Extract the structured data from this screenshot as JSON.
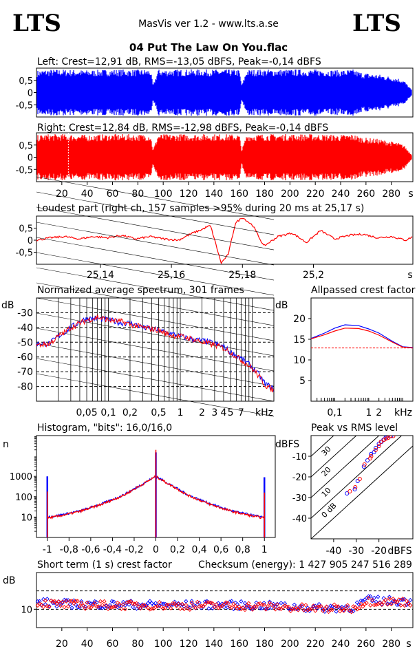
{
  "header": {
    "logo_left": "LTS",
    "logo_right": "LTS",
    "app_title": "MasVis ver 1.2 - www.lts.a.se",
    "file_title": "04 Put The Law On You.flac"
  },
  "colors": {
    "left_channel": "#0000ff",
    "right_channel": "#ff0000",
    "grid": "#000000",
    "reference": "#ff0000"
  },
  "chart_data": [
    {
      "id": "left_waveform",
      "type": "area",
      "title": "Left: Crest=12,91 dB, RMS=-13,05 dBFS, Peak=-0,14 dBFS",
      "yticks": [
        "0,5",
        "0",
        "-0,5"
      ],
      "ylim": [
        -1,
        1
      ],
      "xlim": [
        0,
        297
      ],
      "envelope": {
        "x": [
          0,
          8,
          20,
          40,
          60,
          80,
          90,
          92,
          96,
          100,
          120,
          140,
          160,
          162,
          166,
          168,
          180,
          200,
          220,
          240,
          250,
          255,
          260,
          270,
          280,
          285,
          290,
          293,
          297
        ],
        "y": [
          0.9,
          0.95,
          0.95,
          0.92,
          0.95,
          0.94,
          0.95,
          0.3,
          0.95,
          0.94,
          0.95,
          0.95,
          0.94,
          0.3,
          0.95,
          0.94,
          0.95,
          0.95,
          0.95,
          0.92,
          0.95,
          0.85,
          0.8,
          0.75,
          0.65,
          0.6,
          0.5,
          0.3,
          0.05
        ]
      }
    },
    {
      "id": "right_waveform",
      "type": "area",
      "title": "Right: Crest=12,84 dB, RMS=-12,98 dBFS, Peak=-0,14 dBFS",
      "yticks": [
        "0,5",
        "0",
        "-0,5"
      ],
      "ylim": [
        -1,
        1
      ],
      "xlim": [
        0,
        297
      ],
      "xticks": [
        "20",
        "40",
        "60",
        "80",
        "100",
        "120",
        "140",
        "160",
        "180",
        "200",
        "220",
        "240",
        "260",
        "280"
      ],
      "xunit": "s",
      "marker_x": 25.17,
      "envelope": {
        "x": [
          0,
          8,
          20,
          40,
          60,
          80,
          90,
          92,
          96,
          100,
          120,
          140,
          160,
          162,
          166,
          168,
          180,
          200,
          220,
          240,
          250,
          255,
          260,
          270,
          280,
          285,
          290,
          293,
          297
        ],
        "y": [
          0.9,
          0.95,
          0.95,
          0.92,
          0.95,
          0.94,
          0.95,
          0.3,
          0.95,
          0.94,
          0.95,
          0.95,
          0.94,
          0.3,
          0.95,
          0.94,
          0.95,
          0.95,
          0.95,
          0.92,
          0.95,
          0.85,
          0.8,
          0.75,
          0.65,
          0.6,
          0.5,
          0.3,
          0.05
        ]
      }
    },
    {
      "id": "loudest_part",
      "type": "line",
      "title": "Loudest part (right ch, 157 samples >95% during 20 ms at 25,17 s)",
      "yticks": [
        "0,5",
        "0",
        "-0,5"
      ],
      "ylim": [
        -1,
        1
      ],
      "xticks": [
        "25,14",
        "25,16",
        "25,18",
        "25,2"
      ],
      "xunit": "s",
      "xlim": [
        25.122,
        25.228
      ],
      "series": [
        {
          "color": "#ff0000",
          "x": [
            25.122,
            25.126,
            25.13,
            25.134,
            25.138,
            25.142,
            25.146,
            25.15,
            25.154,
            25.158,
            25.162,
            25.166,
            25.168,
            25.17,
            25.171,
            25.172,
            25.174,
            25.176,
            25.178,
            25.18,
            25.183,
            25.186,
            25.19,
            25.194,
            25.198,
            25.202,
            25.206,
            25.21,
            25.214,
            25.218,
            25.222,
            25.226,
            25.228
          ],
          "y": [
            0.0,
            0.1,
            0.15,
            0.05,
            0.15,
            0.1,
            0.2,
            0.05,
            0.15,
            0.05,
            0.0,
            0.3,
            0.4,
            0.55,
            0.6,
            0.1,
            -0.95,
            -0.6,
            0.7,
            0.95,
            0.6,
            -0.25,
            0.15,
            0.3,
            -0.1,
            0.4,
            0.05,
            0.2,
            0.25,
            0.1,
            0.15,
            0.0,
            0.15
          ]
        }
      ]
    },
    {
      "id": "average_spectrum",
      "type": "line",
      "title": "Normalized average spectrum, 301 frames",
      "ylabel": "dB",
      "yticks": [
        "-30",
        "-40",
        "-50",
        "-60",
        "-70",
        "-80"
      ],
      "ylim": [
        -90,
        -20
      ],
      "xticks": [
        "0,05",
        "0,1",
        "0,2",
        "0,5",
        "1",
        "2",
        "3",
        "4",
        "5",
        "7"
      ],
      "xunit": "kHz",
      "xlim": [
        0.01,
        20
      ],
      "xscale": "log",
      "series": [
        {
          "color": "#0000ff",
          "x": [
            0.01,
            0.015,
            0.02,
            0.03,
            0.04,
            0.05,
            0.07,
            0.1,
            0.15,
            0.2,
            0.3,
            0.5,
            0.7,
            1,
            1.5,
            2,
            3,
            4,
            5,
            7,
            10,
            15,
            20
          ],
          "y": [
            -51,
            -51,
            -46,
            -40,
            -36,
            -34,
            -34,
            -35,
            -37,
            -37,
            -40,
            -42,
            -44,
            -46,
            -48,
            -49,
            -51,
            -53,
            -57,
            -61,
            -67,
            -78,
            -82
          ]
        },
        {
          "color": "#ff0000",
          "x": [
            0.01,
            0.015,
            0.02,
            0.03,
            0.04,
            0.05,
            0.07,
            0.1,
            0.15,
            0.2,
            0.3,
            0.5,
            0.7,
            1,
            1.5,
            2,
            3,
            4,
            5,
            7,
            10,
            15,
            20
          ],
          "y": [
            -52,
            -51,
            -46,
            -40,
            -37,
            -35,
            -33,
            -35,
            -36,
            -38,
            -40,
            -42,
            -45,
            -46,
            -48,
            -50,
            -52,
            -54,
            -57,
            -62,
            -68,
            -79,
            -83
          ]
        }
      ]
    },
    {
      "id": "allpassed_crest",
      "type": "line",
      "title": "Allpassed crest factor",
      "ylabel": "dB",
      "yticks": [
        "20",
        "15",
        "10",
        "5"
      ],
      "ylim": [
        0,
        25
      ],
      "xticks": [
        "0,1",
        "1",
        "2"
      ],
      "xunit": "kHz",
      "xlim": [
        0.02,
        20
      ],
      "xscale": "log",
      "reference": 12.9,
      "series": [
        {
          "color": "#0000ff",
          "x": [
            0.02,
            0.05,
            0.1,
            0.2,
            0.5,
            1,
            2,
            5,
            10,
            20
          ],
          "y": [
            15.2,
            16.5,
            17.7,
            18.5,
            18.3,
            17.5,
            16.5,
            14.5,
            13.2,
            13.0
          ]
        },
        {
          "color": "#ff0000",
          "x": [
            0.02,
            0.05,
            0.1,
            0.2,
            0.5,
            1,
            2,
            5,
            10,
            20
          ],
          "y": [
            15.1,
            16.1,
            17.0,
            17.7,
            17.6,
            17.0,
            16.0,
            14.3,
            13.1,
            12.9
          ]
        }
      ]
    },
    {
      "id": "histogram",
      "type": "line",
      "title": "Histogram, \"bits\": 16,0/16,0",
      "ylabel": "n",
      "yticks": [
        "1000",
        "100",
        "10"
      ],
      "yscale": "log",
      "ylim": [
        1,
        100000
      ],
      "xticks": [
        "-1",
        "-0,8",
        "-0,6",
        "-0,4",
        "-0,2",
        "0",
        "0,2",
        "0,4",
        "0,6",
        "0,8",
        "1"
      ],
      "xlim": [
        -1.1,
        1.1
      ],
      "spikes": {
        "x": [
          -1,
          0,
          1
        ],
        "blue": [
          1000,
          15000,
          900
        ],
        "red": [
          180,
          20000,
          160
        ]
      },
      "series": [
        {
          "color": "#0000ff",
          "x": [
            -1,
            -0.9,
            -0.7,
            -0.5,
            -0.3,
            -0.1,
            0,
            0.1,
            0.3,
            0.5,
            0.7,
            0.9,
            1
          ],
          "y": [
            10,
            12,
            20,
            45,
            120,
            500,
            1000,
            500,
            120,
            45,
            20,
            12,
            10
          ]
        },
        {
          "color": "#ff0000",
          "x": [
            -1,
            -0.9,
            -0.7,
            -0.5,
            -0.3,
            -0.1,
            0,
            0.1,
            0.3,
            0.5,
            0.7,
            0.9,
            1
          ],
          "y": [
            9,
            11,
            19,
            42,
            115,
            480,
            1000,
            480,
            115,
            42,
            19,
            11,
            9
          ]
        }
      ]
    },
    {
      "id": "peak_vs_rms",
      "type": "scatter",
      "title": "Peak vs RMS level",
      "ylabel": "dBFS",
      "xlabel": "dBFS",
      "yticks": [
        "-10",
        "-20",
        "-30",
        "-40"
      ],
      "ylim": [
        -50,
        0
      ],
      "xticks": [
        "-40",
        "-30",
        "-20"
      ],
      "xlim": [
        -50,
        -5
      ],
      "crest_lines": [
        "40",
        "30",
        "20",
        "10",
        "0 dB"
      ],
      "series": [
        {
          "name": "",
          "color": "#0000ff",
          "x": [
            -34,
            -31,
            -29,
            -27,
            -25,
            -24,
            -22,
            -21,
            -20,
            -19,
            -18,
            -17,
            -16,
            -15
          ],
          "y": [
            -28,
            -26,
            -22,
            -15,
            -12,
            -9,
            -8,
            -6,
            -4,
            -3,
            -2,
            -1,
            -0.5,
            -0.2
          ]
        },
        {
          "name": "",
          "color": "#ff0000",
          "x": [
            -33,
            -30,
            -28,
            -26,
            -24,
            -23,
            -21,
            -20,
            -19,
            -18,
            -17,
            -16,
            -15,
            -14
          ],
          "y": [
            -27,
            -25,
            -21,
            -14,
            -11,
            -10,
            -7,
            -5,
            -3,
            -2,
            -1.5,
            -1,
            -0.3,
            -0.2
          ]
        }
      ]
    },
    {
      "id": "short_term_crest",
      "type": "scatter",
      "title": "Short term (1 s) crest factor",
      "annotation": "Checksum (energy):  1 427 905 247 516 289",
      "ylabel": "dB",
      "yticks": [
        "10"
      ],
      "ylim": [
        5,
        20
      ],
      "reference_lines": [
        15,
        10
      ],
      "xticks": [
        "20",
        "40",
        "60",
        "80",
        "100",
        "120",
        "140",
        "160",
        "180",
        "200",
        "220",
        "240",
        "260",
        "280"
      ],
      "xunit": "s",
      "xlim": [
        0,
        297
      ],
      "series": [
        {
          "color": "#0000ff",
          "mean_by_region": {
            "x": [
              0,
              20,
              60,
              100,
              140,
              180,
              220,
              250,
              260,
              290
            ],
            "y": [
              12,
              11.5,
              11.3,
              11.2,
              11.2,
              11.0,
              10.3,
              10.5,
              12.5,
              12.2
            ]
          }
        },
        {
          "color": "#ff0000",
          "mean_by_region": {
            "x": [
              0,
              20,
              60,
              100,
              140,
              180,
              220,
              250,
              260,
              290
            ],
            "y": [
              11.8,
              11.3,
              11.1,
              11.0,
              11.0,
              10.8,
              10.1,
              10.3,
              12.2,
              12.0
            ]
          }
        }
      ]
    }
  ]
}
